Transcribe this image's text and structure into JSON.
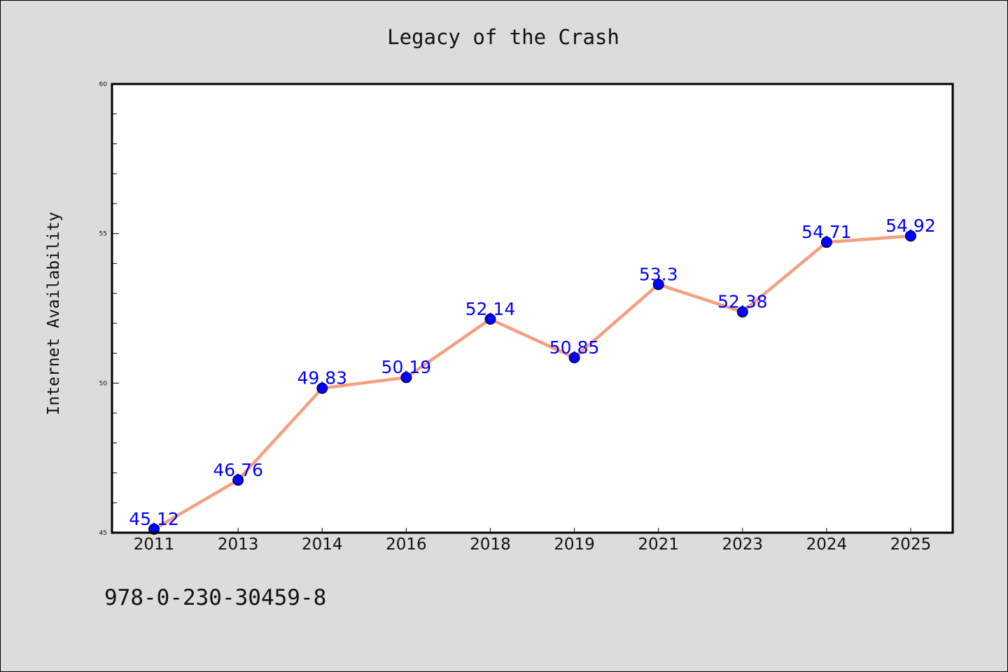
{
  "chart_data": {
    "type": "line",
    "title": "Legacy of the Crash",
    "xlabel": "",
    "ylabel": "Internet Availability",
    "categories": [
      "2011",
      "2013",
      "2014",
      "2016",
      "2018",
      "2019",
      "2021",
      "2023",
      "2024",
      "2025"
    ],
    "series": [
      {
        "values": [
          45.12,
          46.76,
          49.83,
          50.19,
          52.14,
          50.85,
          53.3,
          52.38,
          54.71,
          54.92
        ]
      }
    ],
    "data_labels": [
      "45.12",
      "46.76",
      "49.83",
      "50.19",
      "52.14",
      "50.85",
      "53.3",
      "52.38",
      "54.71",
      "54.92"
    ],
    "ylim": [
      45,
      60
    ],
    "yticks": [
      "45",
      "50",
      "55",
      "60"
    ],
    "grid": false,
    "legend": "none",
    "colors": {
      "line": "#f4a07e",
      "marker": "#0000ff",
      "label": "#0000ff",
      "plot_background": "#ffffff",
      "figure_background": "#dcdcdc"
    }
  },
  "footer": {
    "code": "978-0-230-30459-8"
  }
}
